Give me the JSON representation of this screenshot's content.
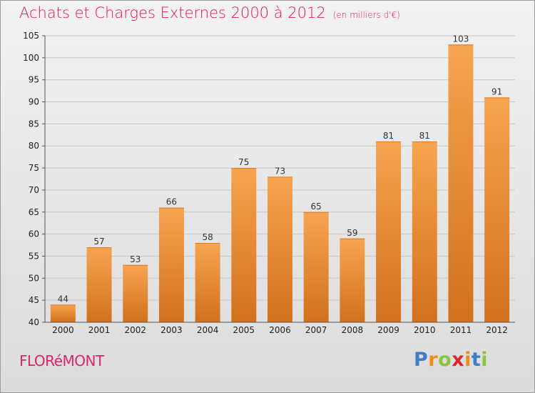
{
  "chart_data": {
    "type": "bar",
    "title": "Achats et Charges Externes 2000 à 2012",
    "unit": "(en milliers d'€)",
    "categories": [
      "2000",
      "2001",
      "2002",
      "2003",
      "2004",
      "2005",
      "2006",
      "2007",
      "2008",
      "2009",
      "2010",
      "2011",
      "2012"
    ],
    "values": [
      44,
      57,
      53,
      66,
      58,
      75,
      73,
      65,
      59,
      81,
      81,
      103,
      91
    ],
    "ylim": [
      40,
      105
    ],
    "yticks": [
      40,
      45,
      50,
      55,
      60,
      65,
      70,
      75,
      80,
      85,
      90,
      95,
      100,
      105
    ],
    "xlabel": "",
    "ylabel": "",
    "grid": "horizontal",
    "bar_color_top": "#f7a450",
    "bar_color_bottom": "#d2711c"
  },
  "footer": {
    "commune": "FLORéMONT",
    "logo_letters": [
      {
        "ch": "P",
        "color": "#3d7ec9"
      },
      {
        "ch": "r",
        "color": "#f28a1e"
      },
      {
        "ch": "o",
        "color": "#8cc43c"
      },
      {
        "ch": "x",
        "color": "#e2242f"
      },
      {
        "ch": "i",
        "color": "#f28a1e"
      },
      {
        "ch": "t",
        "color": "#3d7ec9"
      },
      {
        "ch": "i",
        "color": "#8cc43c"
      }
    ]
  },
  "colors": {
    "title": "#ee0e5f",
    "grid": "#c8c8c8",
    "axis": "#555555"
  }
}
